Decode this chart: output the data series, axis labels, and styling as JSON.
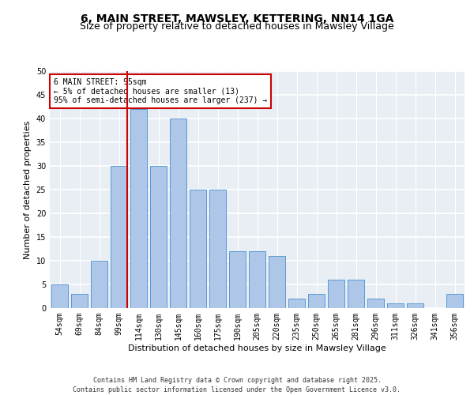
{
  "title1": "6, MAIN STREET, MAWSLEY, KETTERING, NN14 1GA",
  "title2": "Size of property relative to detached houses in Mawsley Village",
  "xlabel": "Distribution of detached houses by size in Mawsley Village",
  "ylabel": "Number of detached properties",
  "footer": "Contains HM Land Registry data © Crown copyright and database right 2025.\nContains public sector information licensed under the Open Government Licence v3.0.",
  "categories": [
    "54sqm",
    "69sqm",
    "84sqm",
    "99sqm",
    "114sqm",
    "130sqm",
    "145sqm",
    "160sqm",
    "175sqm",
    "190sqm",
    "205sqm",
    "220sqm",
    "235sqm",
    "250sqm",
    "265sqm",
    "281sqm",
    "296sqm",
    "311sqm",
    "326sqm",
    "341sqm",
    "356sqm"
  ],
  "values": [
    5,
    3,
    10,
    30,
    42,
    30,
    40,
    25,
    25,
    12,
    12,
    11,
    2,
    3,
    6,
    6,
    2,
    1,
    1,
    0,
    3
  ],
  "bar_color": "#aec6e8",
  "bar_edge_color": "#5a9ad4",
  "highlight_color": "#cc0000",
  "highlight_bar_index": 3,
  "annotation_text": "6 MAIN STREET: 95sqm\n← 5% of detached houses are smaller (13)\n95% of semi-detached houses are larger (237) →",
  "annotation_box_color": "#cc0000",
  "ylim": [
    0,
    50
  ],
  "yticks": [
    0,
    5,
    10,
    15,
    20,
    25,
    30,
    35,
    40,
    45,
    50
  ],
  "background_color": "#e8eef4",
  "grid_color": "#ffffff",
  "title_fontsize": 10,
  "subtitle_fontsize": 9,
  "xlabel_fontsize": 8,
  "ylabel_fontsize": 8,
  "tick_fontsize": 7,
  "annotation_fontsize": 7,
  "footer_fontsize": 6
}
